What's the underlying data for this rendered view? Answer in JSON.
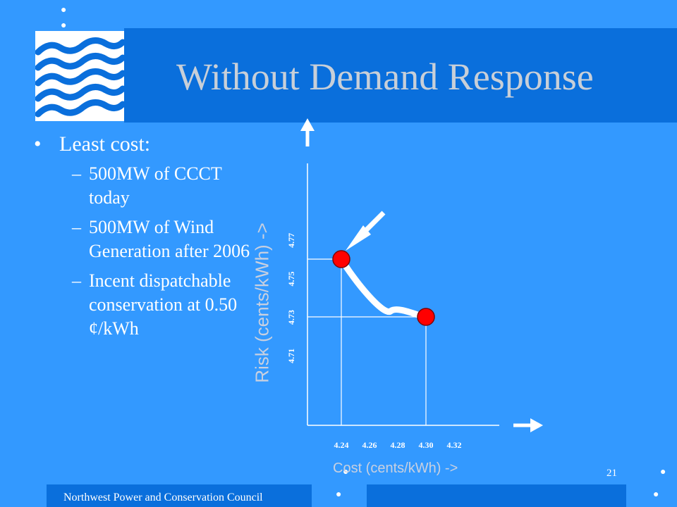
{
  "slide": {
    "title": "Without Demand Response",
    "page_number": "21",
    "footer": "Northwest Power and Conservation Council",
    "bullets": {
      "main": "Least cost:",
      "marker": "•",
      "dash": "–",
      "items": [
        "500MW of CCCT today",
        "500MW of Wind Generation after 2006",
        "Incent dispatchable conservation at 0.50 ¢/kWh"
      ]
    },
    "logo": "waves-logo-icon"
  },
  "chart_data": {
    "type": "scatter",
    "xlabel": "Cost (cents/kWh) ->",
    "ylabel": "Risk (cents/kWh) ->",
    "x_ticks": [
      "4.24",
      "4.26",
      "4.28",
      "4.30",
      "4.32"
    ],
    "y_ticks": [
      "4.71",
      "4.73",
      "4.75",
      "4.77"
    ],
    "points": [
      {
        "x": 4.24,
        "y": 4.75
      },
      {
        "x": 4.3,
        "y": 4.72
      }
    ],
    "curve": [
      {
        "x": 4.24,
        "y": 4.75
      },
      {
        "x": 4.255,
        "y": 4.734
      },
      {
        "x": 4.275,
        "y": 4.723
      },
      {
        "x": 4.3,
        "y": 4.72
      }
    ],
    "point_color": "#ff0000",
    "curve_color": "#ffffff"
  }
}
